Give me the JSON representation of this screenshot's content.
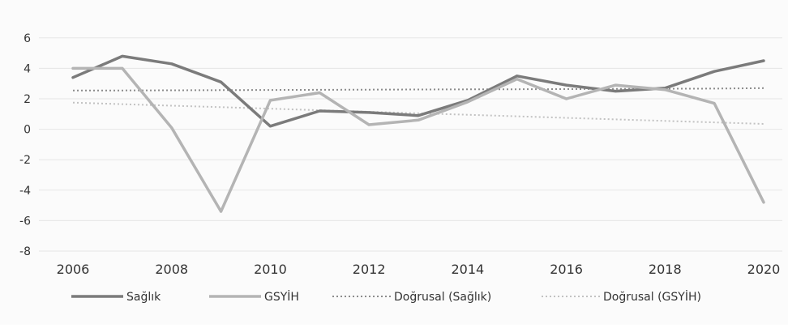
{
  "chart_data": {
    "type": "line",
    "title": "",
    "xlabel": "",
    "ylabel": "",
    "x": [
      2006,
      2007,
      2008,
      2009,
      2010,
      2011,
      2012,
      2013,
      2014,
      2015,
      2016,
      2017,
      2018,
      2019,
      2020
    ],
    "x_tick_labels": [
      "2006",
      "2008",
      "2010",
      "2012",
      "2014",
      "2016",
      "2018",
      "2020"
    ],
    "y_tick_labels": [
      "6",
      "4",
      "2",
      "0",
      "-2",
      "-4",
      "-6",
      "-8"
    ],
    "ylim": [
      -8,
      7
    ],
    "grid": true,
    "legend_position": "bottom",
    "series": [
      {
        "name": "Sağlık",
        "style": "solid",
        "color": "#7b7b7b",
        "values": [
          3.4,
          4.8,
          4.3,
          3.1,
          0.2,
          1.2,
          1.1,
          0.9,
          1.9,
          3.5,
          2.9,
          2.5,
          2.7,
          3.8,
          4.5
        ]
      },
      {
        "name": "GSYİH",
        "style": "solid",
        "color": "#b4b4b4",
        "values": [
          4.0,
          4.0,
          0.1,
          -5.4,
          1.9,
          2.4,
          0.3,
          0.6,
          1.8,
          3.3,
          2.0,
          2.9,
          2.6,
          1.7,
          -4.8
        ]
      },
      {
        "name": "Doğrusal (Sağlık)",
        "style": "dotted",
        "color": "#8c8c8c",
        "values": [
          2.55,
          2.55,
          2.56,
          2.57,
          2.58,
          2.59,
          2.6,
          2.61,
          2.62,
          2.63,
          2.64,
          2.65,
          2.66,
          2.67,
          2.7
        ]
      },
      {
        "name": "Doğrusal (GSYİH)",
        "style": "dotted",
        "color": "#c2c2c2",
        "values": [
          1.75,
          1.65,
          1.55,
          1.45,
          1.35,
          1.25,
          1.15,
          1.05,
          0.95,
          0.85,
          0.75,
          0.65,
          0.55,
          0.45,
          0.35
        ]
      }
    ]
  }
}
